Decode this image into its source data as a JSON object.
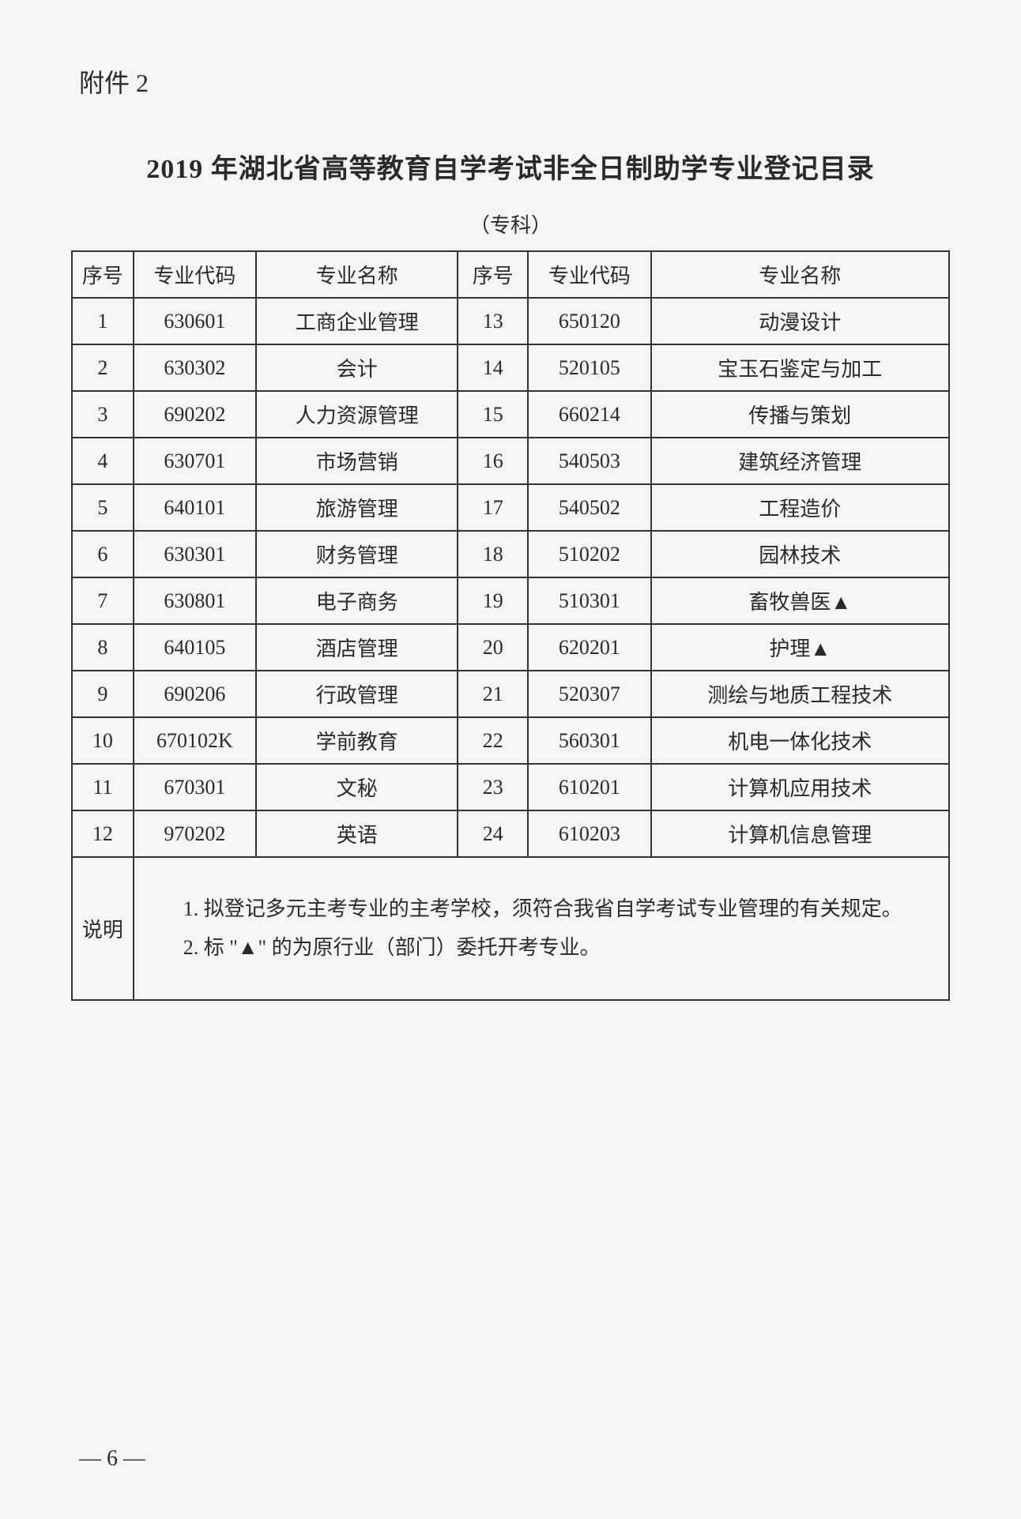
{
  "attachment_label": "附件 2",
  "main_title": "2019 年湖北省高等教育自学考试非全日制助学专业登记目录",
  "subtitle": "（专科）",
  "table": {
    "headers": {
      "seq": "序号",
      "code": "专业代码",
      "name": "专业名称",
      "seq2": "序号",
      "code2": "专业代码",
      "name2": "专业名称"
    },
    "rows": [
      {
        "seq": "1",
        "code": "630601",
        "name": "工商企业管理",
        "seq2": "13",
        "code2": "650120",
        "name2": "动漫设计"
      },
      {
        "seq": "2",
        "code": "630302",
        "name": "会计",
        "seq2": "14",
        "code2": "520105",
        "name2": "宝玉石鉴定与加工"
      },
      {
        "seq": "3",
        "code": "690202",
        "name": "人力资源管理",
        "seq2": "15",
        "code2": "660214",
        "name2": "传播与策划"
      },
      {
        "seq": "4",
        "code": "630701",
        "name": "市场营销",
        "seq2": "16",
        "code2": "540503",
        "name2": "建筑经济管理"
      },
      {
        "seq": "5",
        "code": "640101",
        "name": "旅游管理",
        "seq2": "17",
        "code2": "540502",
        "name2": "工程造价"
      },
      {
        "seq": "6",
        "code": "630301",
        "name": "财务管理",
        "seq2": "18",
        "code2": "510202",
        "name2": "园林技术"
      },
      {
        "seq": "7",
        "code": "630801",
        "name": "电子商务",
        "seq2": "19",
        "code2": "510301",
        "name2": "畜牧兽医▲"
      },
      {
        "seq": "8",
        "code": "640105",
        "name": "酒店管理",
        "seq2": "20",
        "code2": "620201",
        "name2": "护理▲"
      },
      {
        "seq": "9",
        "code": "690206",
        "name": "行政管理",
        "seq2": "21",
        "code2": "520307",
        "name2": "测绘与地质工程技术"
      },
      {
        "seq": "10",
        "code": "670102K",
        "name": "学前教育",
        "seq2": "22",
        "code2": "560301",
        "name2": "机电一体化技术"
      },
      {
        "seq": "11",
        "code": "670301",
        "name": "文秘",
        "seq2": "23",
        "code2": "610201",
        "name2": "计算机应用技术"
      },
      {
        "seq": "12",
        "code": "970202",
        "name": "英语",
        "seq2": "24",
        "code2": "610203",
        "name2": "计算机信息管理"
      }
    ],
    "notes_label": "说明",
    "notes_line1": "1. 拟登记多元主考专业的主考学校，须符合我省自学考试专业管理的有关规定。",
    "notes_line2": "2. 标 \"▲\" 的为原行业（部门）委托开考专业。"
  },
  "page_number": "— 6 —"
}
